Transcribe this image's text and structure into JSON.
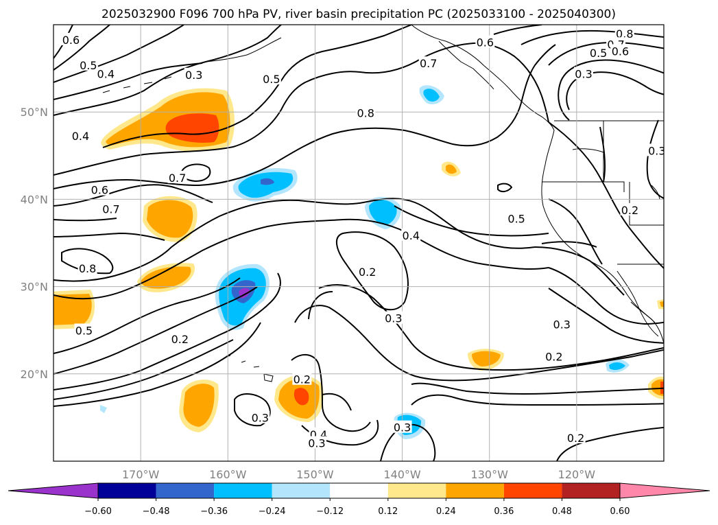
{
  "title": "2025032900 F096 700 hPa PV, river basin precipitation PC (2025033100 - 2025040300)",
  "map": {
    "lon_range": [
      -180,
      -110
    ],
    "lat_range": [
      10,
      60
    ],
    "lon_ticks": [
      {
        "lon": -170,
        "label": "170°W"
      },
      {
        "lon": -160,
        "label": "160°W"
      },
      {
        "lon": -150,
        "label": "150°W"
      },
      {
        "lon": -140,
        "label": "140°W"
      },
      {
        "lon": -130,
        "label": "130°W"
      },
      {
        "lon": -120,
        "label": "120°W"
      }
    ],
    "lat_ticks": [
      {
        "lat": 20,
        "label": "20°N"
      },
      {
        "lat": 30,
        "label": "30°N"
      },
      {
        "lat": 40,
        "label": "40°N"
      },
      {
        "lat": 50,
        "label": "50°N"
      }
    ],
    "grid": true
  },
  "contour_labels": [
    {
      "text": "0.6",
      "lon": -178.0,
      "lat": 58.2
    },
    {
      "text": "0.5",
      "lon": -176.0,
      "lat": 55.3
    },
    {
      "text": "0.4",
      "lon": -174.0,
      "lat": 54.3
    },
    {
      "text": "0.3",
      "lon": -163.9,
      "lat": 54.2
    },
    {
      "text": "0.5",
      "lon": -155.0,
      "lat": 53.7
    },
    {
      "text": "0.7",
      "lon": -137.0,
      "lat": 55.5
    },
    {
      "text": "0.6",
      "lon": -130.5,
      "lat": 57.9
    },
    {
      "text": "0.8",
      "lon": -114.5,
      "lat": 58.9
    },
    {
      "text": "0.7",
      "lon": -115.5,
      "lat": 57.7
    },
    {
      "text": "0.5",
      "lon": -117.5,
      "lat": 56.7
    },
    {
      "text": "0.6",
      "lon": -115.0,
      "lat": 56.9
    },
    {
      "text": "0.3",
      "lon": -119.2,
      "lat": 54.3
    },
    {
      "text": "0.8",
      "lon": -144.2,
      "lat": 49.8
    },
    {
      "text": "0.4",
      "lon": -176.9,
      "lat": 47.2
    },
    {
      "text": "0.7",
      "lon": -165.8,
      "lat": 42.4
    },
    {
      "text": "0.6",
      "lon": -174.7,
      "lat": 41.0
    },
    {
      "text": "0.7",
      "lon": -173.4,
      "lat": 38.8
    },
    {
      "text": "0.8",
      "lon": -176.1,
      "lat": 32.0
    },
    {
      "text": "0.3",
      "lon": -110.8,
      "lat": 45.5
    },
    {
      "text": "0.2",
      "lon": -113.9,
      "lat": 38.7
    },
    {
      "text": "0.5",
      "lon": -126.9,
      "lat": 37.7
    },
    {
      "text": "0.4",
      "lon": -139.0,
      "lat": 35.8
    },
    {
      "text": "0.2",
      "lon": -144.0,
      "lat": 31.6
    },
    {
      "text": "0.3",
      "lon": -141.0,
      "lat": 26.3
    },
    {
      "text": "0.5",
      "lon": -176.5,
      "lat": 24.9
    },
    {
      "text": "0.2",
      "lon": -165.5,
      "lat": 23.9
    },
    {
      "text": "0.3",
      "lon": -121.7,
      "lat": 25.6
    },
    {
      "text": "0.2",
      "lon": -122.6,
      "lat": 21.9
    },
    {
      "text": "0.2",
      "lon": -151.5,
      "lat": 19.3
    },
    {
      "text": "0.3",
      "lon": -156.3,
      "lat": 14.9
    },
    {
      "text": "0.4",
      "lon": -149.6,
      "lat": 13.0
    },
    {
      "text": "0.3",
      "lon": -149.8,
      "lat": 12.0
    },
    {
      "text": "0.3",
      "lon": -140.0,
      "lat": 13.8
    },
    {
      "text": "0.2",
      "lon": -120.1,
      "lat": 12.6
    }
  ],
  "colorbar": {
    "colors": [
      "#9933cc",
      "#000099",
      "#3366cc",
      "#00bfff",
      "#b3e5fc",
      "#ffffff",
      "#ffe88c",
      "#ffa500",
      "#ff4500",
      "#b22222",
      "#ff88aa"
    ],
    "tick_labels": [
      "−0.60",
      "−0.48",
      "−0.36",
      "−0.24",
      "−0.12",
      "0.12",
      "0.24",
      "0.36",
      "0.48",
      "0.60"
    ],
    "extend": "both"
  }
}
